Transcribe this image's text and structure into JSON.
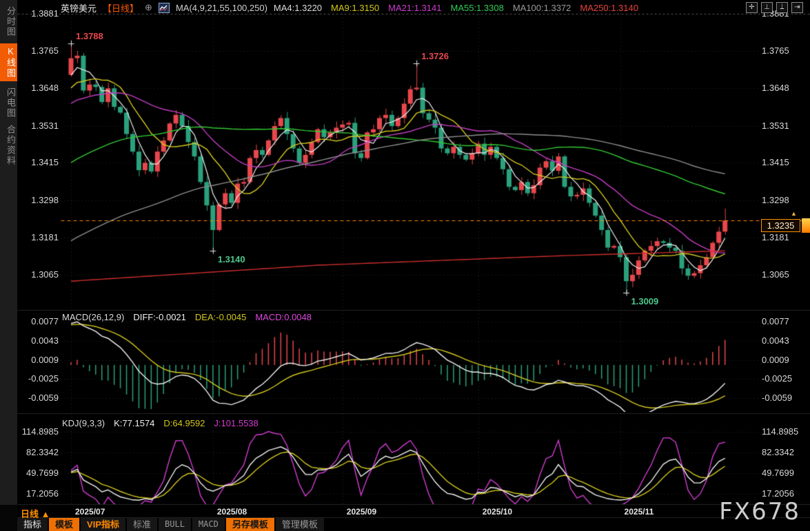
{
  "header": {
    "symbol": "英镑美元",
    "period": "【日线】",
    "add_icon": "⊕",
    "ma_label": "MA(4,9,21,55,100,250)",
    "ma_values": [
      {
        "label": "MA4:1.3220",
        "color": "#dcdcdc"
      },
      {
        "label": "MA9:1.3150",
        "color": "#d4c81e"
      },
      {
        "label": "MA21:1.3141",
        "color": "#cf3ccf"
      },
      {
        "label": "MA55:1.3308",
        "color": "#33cc55"
      },
      {
        "label": "MA100:1.3372",
        "color": "#9a9a9a"
      },
      {
        "label": "MA250:1.3140",
        "color": "#e8433f"
      }
    ],
    "toolbar_icons": [
      {
        "name": "pan-crosshair-icon",
        "glyph": "✛"
      },
      {
        "name": "y-axis-scale-icon",
        "glyph": "⊥"
      },
      {
        "name": "x-axis-scale-icon",
        "glyph": "⟘"
      },
      {
        "name": "jump-to-latest-icon",
        "glyph": "⇥"
      }
    ]
  },
  "sidebar": {
    "items": [
      {
        "label": "分时图",
        "selected": false
      },
      {
        "label": "K线图",
        "selected": true
      },
      {
        "label": "闪电图",
        "selected": false
      },
      {
        "label": "合约资料",
        "selected": false
      }
    ]
  },
  "price_axis": [
    "1.3881",
    "1.3765",
    "1.3648",
    "1.3531",
    "1.3415",
    "1.3298",
    "1.3181",
    "1.3065"
  ],
  "current_price": {
    "value": "1.3235"
  },
  "macd_panel": {
    "title": "MACD(26,12,9)",
    "diff_label": "DIFF:-0.0021",
    "dea_label": "DEA:-0.0045",
    "macd_label": "MACD:0.0048",
    "axis": [
      "0.0077",
      "0.0043",
      "0.0009",
      "-0.0025",
      "-0.0059"
    ]
  },
  "kdj_panel": {
    "title": "KDJ(9,3,3)",
    "k_label": "K:77.1574",
    "d_label": "D:64.9592",
    "j_label": "J:101.5538",
    "axis": [
      "114.8985",
      "82.3342",
      "49.7699",
      "17.2056"
    ]
  },
  "date_axis": {
    "period_label": "日线 ▲",
    "months": [
      "2025/07",
      "2025/08",
      "2025/09",
      "2025/10",
      "2025/11"
    ]
  },
  "bottom_tabs": [
    {
      "label": "指标",
      "style": "bright"
    },
    {
      "label": "模板",
      "style": "sel"
    },
    {
      "label": "VIP指标",
      "style": "vip"
    },
    {
      "label": "标准",
      "style": "plain"
    },
    {
      "label": "BULL",
      "style": "mono"
    },
    {
      "label": "MACD",
      "style": "mono"
    },
    {
      "label": "另存模板",
      "style": "sel"
    },
    {
      "label": "管理模板",
      "style": "plain"
    }
  ],
  "watermark": "FX678",
  "chart_data": {
    "type": "candlestick+indicators",
    "title": "英镑美元 GBPUSD 日线 (daily)",
    "price_axis_ticks": [
      1.3881,
      1.3765,
      1.3648,
      1.3531,
      1.3415,
      1.3298,
      1.3181,
      1.3065
    ],
    "first_open": 1.369,
    "closes": [
      1.3742,
      1.375,
      1.3641,
      1.366,
      1.3652,
      1.3605,
      1.3648,
      1.359,
      1.3572,
      1.3505,
      1.345,
      1.3392,
      1.3415,
      1.3388,
      1.345,
      1.3485,
      1.3538,
      1.3565,
      1.353,
      1.348,
      1.3435,
      1.3355,
      1.3282,
      1.3205,
      1.3285,
      1.332,
      1.329,
      1.335,
      1.3355,
      1.343,
      1.3455,
      1.344,
      1.3485,
      1.353,
      1.3555,
      1.3505,
      1.346,
      1.3415,
      1.344,
      1.348,
      1.352,
      1.3495,
      1.351,
      1.3525,
      1.3535,
      1.354,
      1.3445,
      1.343,
      1.351,
      1.352,
      1.3555,
      1.3565,
      1.353,
      1.3555,
      1.36,
      1.3645,
      1.365,
      1.357,
      1.355,
      1.3525,
      1.346,
      1.3445,
      1.3465,
      1.344,
      1.3425,
      1.3445,
      1.3475,
      1.344,
      1.3465,
      1.343,
      1.3395,
      1.334,
      1.333,
      1.3355,
      1.332,
      1.3345,
      1.34,
      1.342,
      1.339,
      1.3435,
      1.334,
      1.331,
      1.3315,
      1.3335,
      1.329,
      1.325,
      1.3205,
      1.315,
      1.3155,
      1.312,
      1.3045,
      1.3065,
      1.311,
      1.314,
      1.3155,
      1.317,
      1.3165,
      1.315,
      1.314,
      1.3085,
      1.3062,
      1.307,
      1.3095,
      1.312,
      1.3165,
      1.32,
      1.3235
    ],
    "wick_overrides": {
      "0": {
        "h": 1.3788
      },
      "23": {
        "l": 1.314
      },
      "56": {
        "h": 1.3726
      },
      "90": {
        "l": 1.3009
      },
      "106": {
        "h": 1.3272
      }
    },
    "month_start_indices": [
      0,
      23,
      44,
      66,
      89
    ],
    "annotations": [
      {
        "index": 0,
        "price": 1.3788,
        "text": "1.3788",
        "color": "#e8474c",
        "side": "above"
      },
      {
        "index": 56,
        "price": 1.3726,
        "text": "1.3726",
        "color": "#e8474c",
        "side": "above"
      },
      {
        "index": 23,
        "price": 1.314,
        "text": "1.3140",
        "color": "#4ec98c",
        "side": "below"
      },
      {
        "index": 90,
        "price": 1.3009,
        "text": "1.3009",
        "color": "#4ec98c",
        "side": "below"
      }
    ],
    "last_price": 1.3235,
    "colors": {
      "up": "#e8474c",
      "down": "#2aa17c",
      "price_line": "#ff8a00",
      "ma4": "#f0f0f0",
      "ma9": "#d4c81e",
      "ma21": "#c53ec5",
      "ma55": "#33cc33",
      "ma100": "#8f8f8f",
      "ma250": "#cf2e2e",
      "diff": "#f0f0f0",
      "dea": "#d4c81e",
      "j": "#d23cd2"
    },
    "ma": {
      "periods": [
        4,
        9,
        21,
        55,
        100
      ],
      "ma250_points": [
        [
          0,
          1.3045
        ],
        [
          40,
          1.3095
        ],
        [
          80,
          1.3125
        ],
        [
          106,
          1.314
        ]
      ],
      "current": {
        "ma4": 1.322,
        "ma9": 1.315,
        "ma21": 1.3141,
        "ma55": 1.3308,
        "ma100": 1.3372,
        "ma250": 1.314
      }
    },
    "macd": {
      "params": [
        26,
        12,
        9
      ],
      "diff": -0.0021,
      "dea": -0.0045,
      "macd": 0.0048,
      "axis_ticks": [
        0.0077,
        0.0043,
        0.0009,
        -0.0025,
        -0.0059
      ]
    },
    "kdj": {
      "params": [
        9,
        3,
        3
      ],
      "k": 77.1574,
      "d": 64.9592,
      "j": 101.5538,
      "axis_ticks": [
        114.8985,
        82.3342,
        49.7699,
        17.2056
      ]
    }
  },
  "render_hints": {
    "prehistory": {
      "days": 100,
      "start": 1.262,
      "end": 1.37
    }
  }
}
